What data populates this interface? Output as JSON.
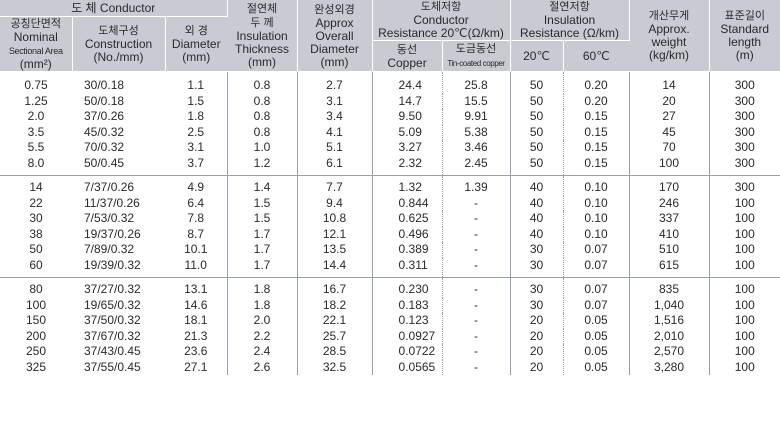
{
  "header": {
    "conductor_group": "도 체  Conductor",
    "nominal_area_kr": "공칭단면적",
    "nominal_area_en1": "Nominal",
    "nominal_area_en2": "Sectional Area",
    "nominal_area_unit": "(mm²)",
    "construction_kr": "도체구성",
    "construction_en": "Construction",
    "construction_unit": "(No./mm)",
    "diameter_kr": "외 경",
    "diameter_en": "Diameter",
    "diameter_unit": "(mm)",
    "insulation_kr1": "절연체",
    "insulation_kr2": "두 께",
    "insulation_en1": "Insulation",
    "insulation_en2": "Thickness",
    "insulation_unit": "(mm)",
    "overall_kr": "완성외경",
    "overall_en1": "Approx",
    "overall_en2": "Overall",
    "overall_en3": "Diameter",
    "overall_unit": "(mm)",
    "cond_res_kr": "도체저항",
    "cond_res_en1": "Conductor",
    "cond_res_en2": "Resistance 20℃(Ω/km)",
    "copper_kr": "동선",
    "copper_en": "Copper",
    "tin_kr": "도금동선",
    "tin_en": "Tin-coated copper",
    "ins_res_kr": "절연저항",
    "ins_res_en1": "Insulation",
    "ins_res_en2": "Resistance (Ω/km)",
    "temp20": "20℃",
    "temp60": "60℃",
    "weight_kr": "개산무게",
    "weight_en1": "Approx.",
    "weight_en2": "weight",
    "weight_unit": "(kg/km)",
    "length_kr": "표준길이",
    "length_en1": "Standard",
    "length_en2": "length",
    "length_unit": "(m)"
  },
  "rows": [
    [
      "0.75",
      "30/0.18",
      "1.1",
      "0.8",
      "2.7",
      "24.4",
      "25.8",
      "50",
      "0.20",
      "14",
      "300"
    ],
    [
      "1.25",
      "50/0.18",
      "1.5",
      "0.8",
      "3.1",
      "14.7",
      "15.5",
      "50",
      "0.20",
      "20",
      "300"
    ],
    [
      "2.0",
      "37/0.26",
      "1.8",
      "0.8",
      "3.4",
      "9.50",
      "9.91",
      "50",
      "0.15",
      "27",
      "300"
    ],
    [
      "3.5",
      "45/0.32",
      "2.5",
      "0.8",
      "4.1",
      "5.09",
      "5.38",
      "50",
      "0.15",
      "45",
      "300"
    ],
    [
      "5.5",
      "70/0.32",
      "3.1",
      "1.0",
      "5.1",
      "3.27",
      "3.46",
      "50",
      "0.15",
      "70",
      "300"
    ],
    [
      "8.0",
      "50/0.45",
      "3.7",
      "1.2",
      "6.1",
      "2.32",
      "2.45",
      "50",
      "0.15",
      "100",
      "300"
    ],
    [
      "14",
      "7/37/0.26",
      "4.9",
      "1.4",
      "7.7",
      "1.32",
      "1.39",
      "40",
      "0.10",
      "170",
      "300"
    ],
    [
      "22",
      "11/37/0.26",
      "6.4",
      "1.5",
      "9.4",
      "0.844",
      "-",
      "40",
      "0.10",
      "246",
      "100"
    ],
    [
      "30",
      "7/53/0.32",
      "7.8",
      "1.5",
      "10.8",
      "0.625",
      "-",
      "40",
      "0.10",
      "337",
      "100"
    ],
    [
      "38",
      "19/37/0.26",
      "8.7",
      "1.7",
      "12.1",
      "0.496",
      "-",
      "40",
      "0.10",
      "410",
      "100"
    ],
    [
      "50",
      "7/89/0.32",
      "10.1",
      "1.7",
      "13.5",
      "0.389",
      "-",
      "30",
      "0.07",
      "510",
      "100"
    ],
    [
      "60",
      "19/39/0.32",
      "11.0",
      "1.7",
      "14.4",
      "0.311",
      "-",
      "30",
      "0.07",
      "615",
      "100"
    ],
    [
      "80",
      "37/27/0.32",
      "13.1",
      "1.8",
      "16.7",
      "0.230",
      "-",
      "30",
      "0.07",
      "835",
      "100"
    ],
    [
      "100",
      "19/65/0.32",
      "14.6",
      "1.8",
      "18.2",
      "0.183",
      "-",
      "30",
      "0.07",
      "1,040",
      "100"
    ],
    [
      "150",
      "37/50/0.32",
      "18.1",
      "2.0",
      "22.1",
      "0.123",
      "-",
      "20",
      "0.05",
      "1,516",
      "100"
    ],
    [
      "200",
      "37/67/0.32",
      "21.3",
      "2.2",
      "25.7",
      "0.0927",
      "-",
      "20",
      "0.05",
      "2,010",
      "100"
    ],
    [
      "250",
      "37/43/0.45",
      "23.6",
      "2.4",
      "28.5",
      "0.0722",
      "-",
      "20",
      "0.05",
      "2,570",
      "100"
    ],
    [
      "325",
      "37/55/0.45",
      "27.1",
      "2.6",
      "32.5",
      "0.0565",
      "-",
      "20",
      "0.05",
      "3,280",
      "100"
    ]
  ]
}
